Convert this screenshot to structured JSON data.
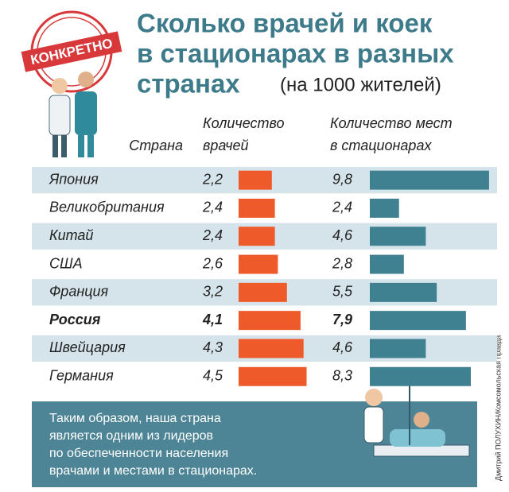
{
  "badge": "КОНКРЕТНО",
  "credit": "Дмитрий ПОЛУХИН/Комсомольская правда",
  "footer": {
    "lines": [
      "Таким образом, наша страна",
      "является одним из лидеров",
      "по обеспеченности населения",
      "врачами и местами в стационарах."
    ]
  },
  "chart_data": {
    "type": "bar",
    "title": [
      "Сколько врачей и коек",
      "в стационарах в разных",
      "странах"
    ],
    "subtitle": "(на 1000 жителей)",
    "category_header": "Страна",
    "categories": [
      "Япония",
      "Великобритания",
      "Китай",
      "США",
      "Франция",
      "Россия",
      "Швейцария",
      "Германия"
    ],
    "highlight_index": 5,
    "series": [
      {
        "name": [
          "Количество",
          "врачей"
        ],
        "color": "#ef5a2a",
        "values": [
          2.2,
          2.4,
          2.4,
          2.6,
          3.2,
          4.1,
          4.3,
          4.5
        ],
        "value_labels": [
          "2,2",
          "2,4",
          "2,4",
          "2,6",
          "3,2",
          "4,1",
          "4,3",
          "4,5"
        ]
      },
      {
        "name": [
          "Количество мест",
          "в стационарах"
        ],
        "color": "#3f8191",
        "values": [
          9.8,
          2.4,
          4.6,
          2.8,
          5.5,
          7.9,
          4.6,
          8.3
        ],
        "value_labels": [
          "9,8",
          "2,4",
          "4,6",
          "2,8",
          "5,5",
          "7,9",
          "4,6",
          "8,3"
        ]
      }
    ]
  }
}
